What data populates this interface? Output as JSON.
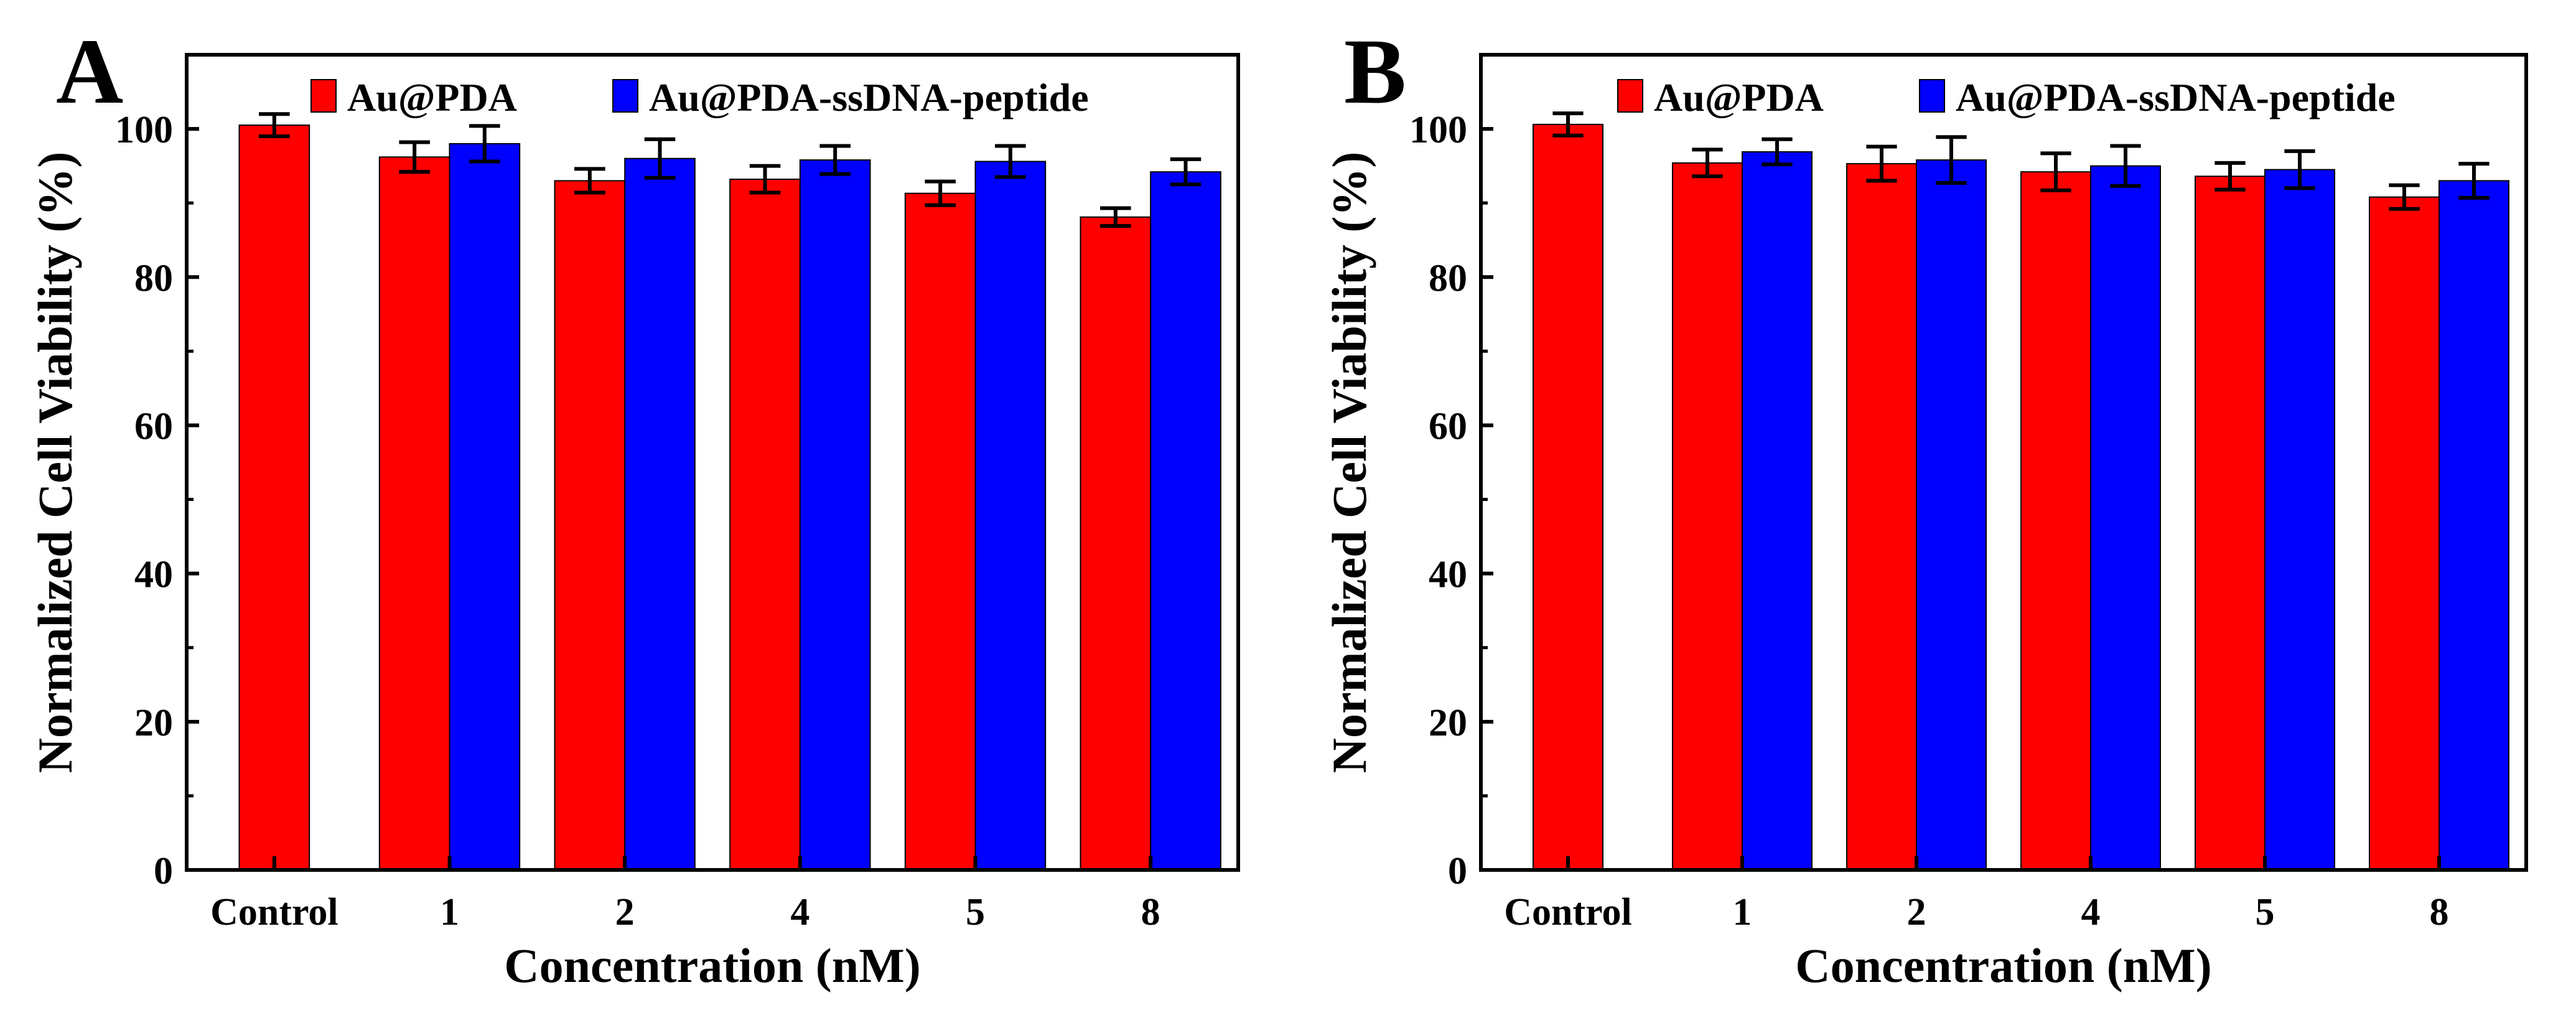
{
  "chart_data": [
    {
      "type": "bar",
      "panel_label": "A",
      "categories": [
        "Control",
        "1",
        "2",
        "4",
        "5",
        "8"
      ],
      "xlabel": "Concentration (nM)",
      "ylabel": "Normalized Cell Viability (%)",
      "ylim": [
        0,
        110
      ],
      "yticks": [
        "0",
        "20",
        "40",
        "60",
        "80",
        "100"
      ],
      "ytick_values": [
        0,
        20,
        40,
        60,
        80,
        100
      ],
      "legend": {
        "placement": "top"
      },
      "series": [
        {
          "name": "Au@PDA",
          "color": "#ff0000",
          "values": [
            100.5,
            96.2,
            93.0,
            93.2,
            91.3,
            88.1
          ],
          "errors": [
            1.5,
            2.0,
            1.6,
            1.8,
            1.6,
            1.2
          ]
        },
        {
          "name": "Au@PDA-ssDNA-peptide",
          "color": "#0000ff",
          "values": [
            null,
            98.0,
            96.0,
            95.8,
            95.6,
            94.2
          ],
          "errors": [
            null,
            2.4,
            2.6,
            1.9,
            2.1,
            1.7
          ]
        }
      ]
    },
    {
      "type": "bar",
      "panel_label": "B",
      "categories": [
        "Control",
        "1",
        "2",
        "4",
        "5",
        "8"
      ],
      "xlabel": "Concentration (nM)",
      "ylabel": "Normalized Cell Viability (%)",
      "ylim": [
        0,
        110
      ],
      "yticks": [
        "0",
        "20",
        "40",
        "60",
        "80",
        "100"
      ],
      "ytick_values": [
        0,
        20,
        40,
        60,
        80,
        100
      ],
      "legend": {
        "placement": "top"
      },
      "series": [
        {
          "name": "Au@PDA",
          "color": "#ff0000",
          "values": [
            100.6,
            95.4,
            95.3,
            94.2,
            93.6,
            90.8
          ],
          "errors": [
            1.5,
            1.8,
            2.3,
            2.5,
            1.8,
            1.6
          ]
        },
        {
          "name": "Au@PDA-ssDNA-peptide",
          "color": "#0000ff",
          "values": [
            null,
            96.9,
            95.8,
            95.0,
            94.5,
            93.0
          ],
          "errors": [
            null,
            1.7,
            3.1,
            2.7,
            2.5,
            2.3
          ]
        }
      ]
    }
  ]
}
